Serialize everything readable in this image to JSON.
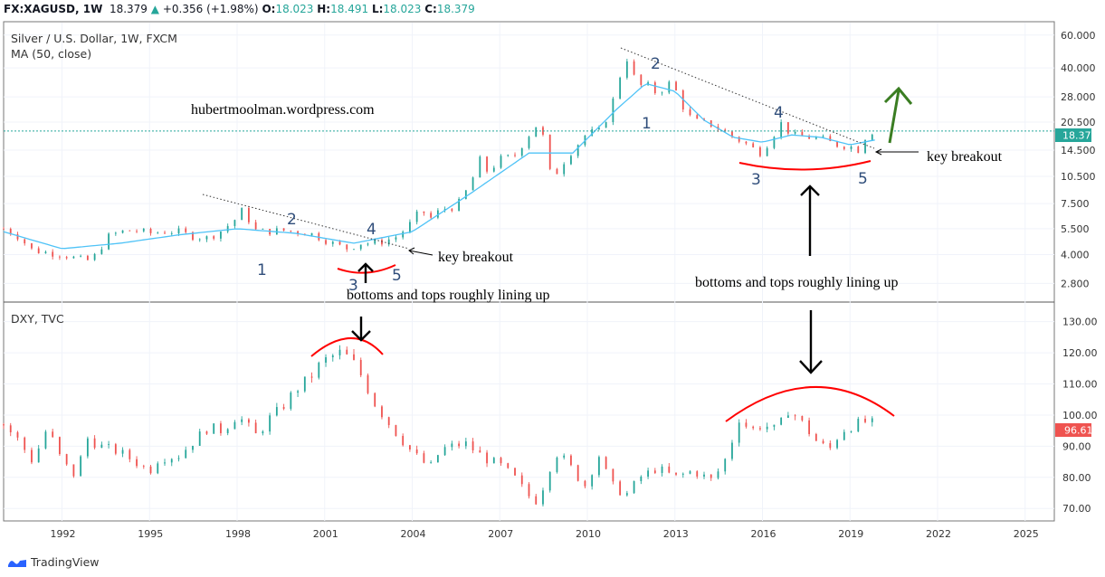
{
  "header": {
    "symbol": "FX:XAGUSD, 1W",
    "last": "18.379",
    "change": "+0.356 (+1.98%)",
    "o_label": "O:",
    "o": "18.023",
    "h_label": "H:",
    "h": "18.491",
    "l_label": "L:",
    "l": "18.023",
    "c_label": "C:",
    "c": "18.379"
  },
  "pane1": {
    "title": "Silver / U.S. Dollar, 1W, FXCM",
    "indicator": "MA (50, close)",
    "price_tag": "18.379"
  },
  "pane2": {
    "title": "DXY, TVC",
    "price_tag": "96.61"
  },
  "annotations": {
    "watermark": "hubertmoolman.wordpress.com",
    "key_breakout_1": "key breakout",
    "key_breakout_2": "key breakout",
    "lining_1": "bottoms and tops roughly lining up",
    "lining_2": "bottoms and tops roughly lining up",
    "waves_left": [
      "1",
      "2",
      "3",
      "4",
      "5"
    ],
    "waves_right": [
      "1",
      "2",
      "3",
      "4",
      "5"
    ]
  },
  "colors": {
    "candle_up": "#26a69a",
    "candle_down": "#ef5350",
    "ma": "#4fc3f7",
    "last_price": "#26a69a",
    "dxy_tag": "#ef5350",
    "arc": "#ff0000",
    "up_arrow": "#3a7d22",
    "wave_label": "#2f4d7a"
  },
  "footer": {
    "brand": "TradingView"
  },
  "chart_data": [
    {
      "type": "line",
      "title": "Silver / U.S. Dollar, 1W, FXCM",
      "scale": "log",
      "y_ticks": [
        2.8,
        4.0,
        5.5,
        7.5,
        10.5,
        14.5,
        20.5,
        28.0,
        40.0,
        60.0
      ],
      "y_tick_labels": [
        "2.800",
        "4.000",
        "5.500",
        "7.500",
        "10.500",
        "14.500",
        "20.500",
        "28.000",
        "40.000",
        "60.000"
      ],
      "x_ticks": [
        1992,
        1995,
        1998,
        2001,
        2004,
        2007,
        2010,
        2013,
        2016,
        2019,
        2022,
        2025
      ],
      "xlim": [
        1990.0,
        2026.0
      ],
      "series": [
        {
          "name": "XAGUSD",
          "x": [
            1990.0,
            1990.5,
            1991.0,
            1991.5,
            1992.0,
            1992.5,
            1993.0,
            1993.3,
            1993.6,
            1994.0,
            1994.5,
            1995.0,
            1995.5,
            1996.0,
            1996.5,
            1997.0,
            1997.5,
            1998.0,
            1998.2,
            1998.6,
            1999.0,
            1999.5,
            2000.0,
            2000.5,
            2001.0,
            2001.4,
            2001.8,
            2002.2,
            2002.6,
            2003.0,
            2003.5,
            2004.0,
            2004.3,
            2004.6,
            2005.0,
            2005.5,
            2006.0,
            2006.3,
            2006.6,
            2007.0,
            2007.5,
            2008.0,
            2008.2,
            2008.5,
            2008.8,
            2009.0,
            2009.5,
            2010.0,
            2010.5,
            2010.8,
            2011.0,
            2011.3,
            2011.5,
            2011.8,
            2012.0,
            2012.4,
            2012.8,
            2013.0,
            2013.4,
            2013.8,
            2014.2,
            2014.6,
            2015.0,
            2015.5,
            2015.9,
            2016.3,
            2016.6,
            2017.0,
            2017.5,
            2018.0,
            2018.5,
            2019.0,
            2019.3,
            2019.6,
            2019.9
          ],
          "y": [
            5.5,
            5.0,
            4.2,
            4.1,
            4.0,
            3.8,
            3.7,
            4.3,
            5.0,
            5.3,
            5.4,
            5.2,
            5.3,
            5.3,
            5.0,
            4.9,
            5.4,
            6.3,
            7.0,
            5.4,
            5.3,
            5.4,
            5.3,
            5.2,
            4.8,
            4.5,
            4.3,
            4.6,
            4.6,
            4.7,
            5.0,
            6.0,
            7.0,
            6.2,
            7.0,
            7.2,
            9.5,
            13.0,
            11.0,
            13.0,
            13.5,
            17.5,
            20.0,
            17.0,
            9.5,
            11.5,
            14.5,
            18.0,
            18.5,
            25.0,
            30.0,
            48.0,
            38.0,
            32.0,
            33.0,
            29.0,
            33.0,
            31.0,
            22.5,
            20.5,
            20.0,
            18.5,
            17.0,
            15.5,
            14.0,
            16.5,
            20.5,
            17.5,
            17.0,
            16.8,
            15.5,
            15.2,
            14.5,
            18.0,
            18.379
          ]
        },
        {
          "name": "MA (50, close)",
          "x": [
            1990.0,
            1992.0,
            1994.0,
            1996.0,
            1998.0,
            2000.0,
            2002.0,
            2004.0,
            2006.0,
            2008.0,
            2009.5,
            2011.0,
            2012.0,
            2013.0,
            2014.0,
            2015.0,
            2016.0,
            2017.0,
            2018.0,
            2019.0,
            2019.9
          ],
          "y": [
            5.3,
            4.3,
            4.6,
            5.1,
            5.5,
            5.2,
            4.6,
            5.3,
            8.5,
            14.0,
            14.0,
            24.0,
            33.0,
            30.0,
            21.0,
            17.0,
            16.0,
            17.5,
            17.0,
            15.5,
            16.5
          ]
        }
      ]
    },
    {
      "type": "line",
      "title": "DXY, TVC",
      "ylim": [
        66,
        136
      ],
      "y_ticks": [
        70,
        80,
        90,
        100,
        110,
        120,
        130
      ],
      "y_tick_labels": [
        "70.00",
        "80.00",
        "90.00",
        "100.00",
        "110.00",
        "120.00",
        "130.00"
      ],
      "x_ticks": [
        1992,
        1995,
        1998,
        2001,
        2004,
        2007,
        2010,
        2013,
        2016,
        2019,
        2022,
        2025
      ],
      "xlim": [
        1990.0,
        2026.0
      ],
      "series": [
        {
          "name": "DXY",
          "x": [
            1990.0,
            1990.5,
            1991.0,
            1991.5,
            1992.0,
            1992.5,
            1992.8,
            1993.3,
            1994.0,
            1995.0,
            1995.3,
            1996.0,
            1997.0,
            1997.5,
            1998.0,
            1998.7,
            1999.0,
            1999.5,
            2000.0,
            2000.5,
            2000.9,
            2001.5,
            2001.9,
            2002.3,
            2002.7,
            2003.3,
            2004.0,
            2004.6,
            2005.0,
            2005.8,
            2006.5,
            2007.0,
            2007.5,
            2008.0,
            2008.3,
            2008.9,
            2009.3,
            2009.9,
            2010.4,
            2010.8,
            2011.3,
            2011.8,
            2012.4,
            2013.0,
            2013.6,
            2014.3,
            2014.8,
            2015.2,
            2015.6,
            2016.0,
            2016.5,
            2016.9,
            2017.4,
            2017.9,
            2018.3,
            2018.7,
            2019.2,
            2019.6,
            2019.9
          ],
          "y": [
            97,
            92,
            85,
            96,
            85,
            80,
            93,
            90,
            88,
            82,
            86,
            87,
            96,
            95,
            100,
            93,
            98,
            102,
            108,
            112,
            117,
            120,
            118,
            112,
            104,
            96,
            88,
            83,
            89,
            91,
            86,
            84,
            80,
            74,
            72,
            88,
            85,
            77,
            87,
            78,
            74,
            80,
            83,
            80,
            82,
            79,
            87,
            99,
            95,
            97,
            95,
            102,
            97,
            91,
            89,
            95,
            97,
            98,
            96.61
          ]
        }
      ]
    }
  ]
}
